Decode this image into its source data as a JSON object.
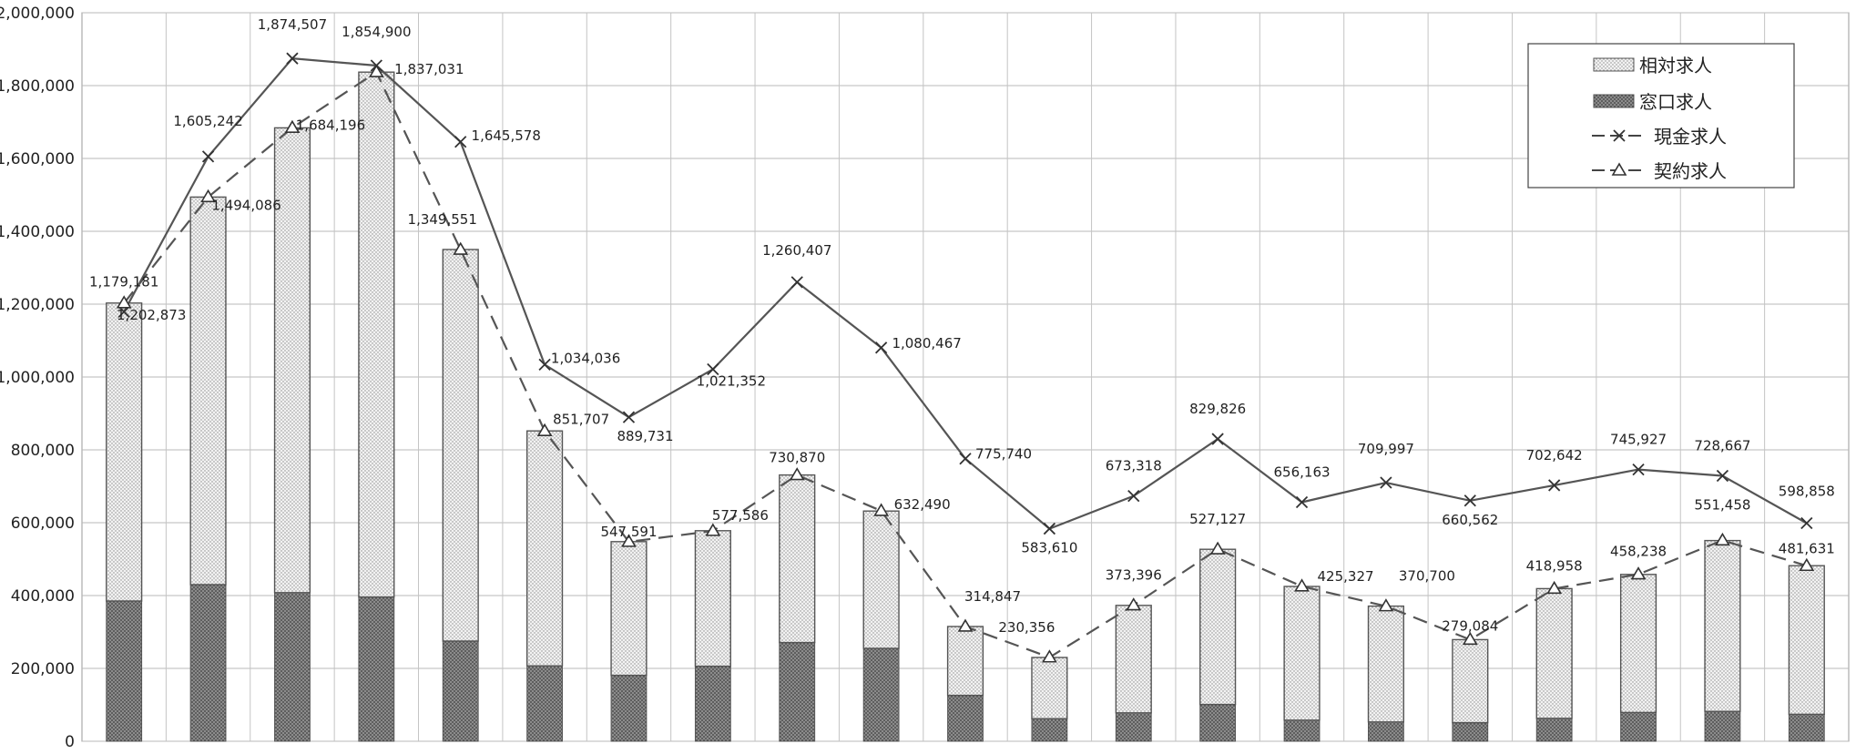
{
  "chart_data": {
    "type": "bar",
    "ylim": [
      0,
      2000000
    ],
    "yticks": [
      0,
      200000,
      400000,
      600000,
      800000,
      1000000,
      1200000,
      1400000,
      1600000,
      1800000,
      2000000
    ],
    "ytick_labels": [
      "0",
      "200,000",
      "400,000",
      "600,000",
      "800,000",
      "1,000,000",
      "1,200,000",
      "1,400,000",
      "1,600,000",
      "1,800,000",
      "2,000,000"
    ],
    "grid": true,
    "legend_position": "top-right",
    "n_categories": 21,
    "series": [
      {
        "name": "相対求人",
        "kind": "bar-stacked",
        "color": "#e4e4e4",
        "values": [
          818000,
          1064000,
          1276000,
          1441000,
          1075000,
          645000,
          367000,
          372000,
          460000,
          377000,
          189000,
          168000,
          295000,
          426000,
          367000,
          318000,
          228000,
          356000,
          379000,
          469000,
          408000
        ]
      },
      {
        "name": "窓口求人",
        "kind": "bar-stacked",
        "color": "#7a7a7a",
        "values": [
          385000,
          430000,
          408000,
          396000,
          275000,
          207000,
          181000,
          206000,
          271000,
          255000,
          126000,
          62000,
          78000,
          101000,
          58000,
          53000,
          51000,
          63000,
          79000,
          82000,
          74000
        ]
      },
      {
        "name": "現金求人",
        "kind": "line",
        "marker": "x",
        "color": "#555555",
        "values": [
          1179181,
          1605242,
          1874507,
          1854900,
          1645578,
          1034036,
          889731,
          1021352,
          1260407,
          1080467,
          775740,
          583610,
          673318,
          829826,
          656163,
          709997,
          660562,
          702642,
          745927,
          728667,
          598858
        ],
        "labels": [
          "1,179,181",
          "1,605,242",
          "1,874,507",
          "1,854,900",
          "1,645,578",
          "1,034,036",
          "889,731",
          "1,021,352",
          "1,260,407",
          "1,080,467",
          "775,740",
          "583,610",
          "673,318",
          "829,826",
          "656,163",
          "709,997",
          "660,562",
          "702,642",
          "745,927",
          "728,667",
          "598,858"
        ]
      },
      {
        "name": "契約求人",
        "kind": "line-dashed",
        "marker": "triangle",
        "color": "#555555",
        "values": [
          1202873,
          1494086,
          1684196,
          1837031,
          1349551,
          851707,
          547591,
          577586,
          730870,
          632490,
          314847,
          230356,
          373396,
          527127,
          425327,
          370700,
          279084,
          418958,
          458238,
          551458,
          481631
        ],
        "labels": [
          "1,202,873",
          "1,494,086",
          "1,684,196",
          "1,837,031",
          "1,349,551",
          "851,707",
          "547,591",
          "577,586",
          "730,870",
          "632,490",
          "314,847",
          "230,356",
          "373,396",
          "527,127",
          "425,327",
          "370,700",
          "279,084",
          "418,958",
          "458,238",
          "551,458",
          "481,631"
        ]
      }
    ]
  }
}
